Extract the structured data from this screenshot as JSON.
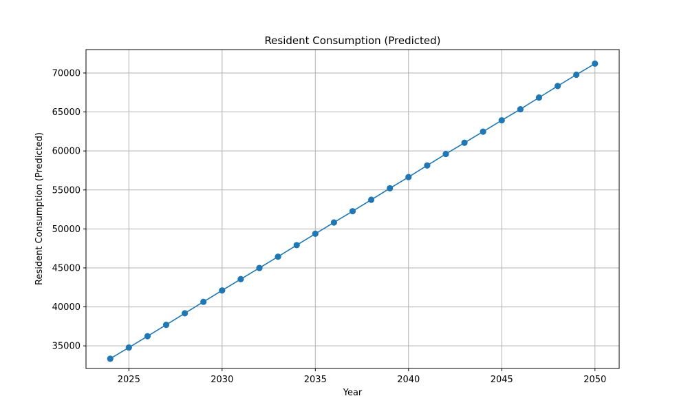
{
  "chart_data": {
    "type": "line",
    "title": "Resident Consumption (Predicted)",
    "xlabel": "Year",
    "ylabel": "Resident Consumption (Predicted)",
    "xlim": [
      2022.7,
      2051.3
    ],
    "ylim": [
      32100,
      73000
    ],
    "xticks": [
      2025,
      2030,
      2035,
      2040,
      2045,
      2050
    ],
    "yticks": [
      35000,
      40000,
      45000,
      50000,
      55000,
      60000,
      65000,
      70000
    ],
    "grid": true,
    "line_color": "#1f77b4",
    "marker": "circle",
    "series": [
      {
        "x": [
          2024,
          2025,
          2026,
          2027,
          2028,
          2029,
          2030,
          2031,
          2032,
          2033,
          2034,
          2035,
          2036,
          2037,
          2038,
          2039,
          2040,
          2041,
          2042,
          2043,
          2044,
          2045,
          2046,
          2047,
          2048,
          2049,
          2050
        ],
        "values": [
          33350,
          34790,
          36240,
          37700,
          39180,
          40650,
          42110,
          43560,
          44990,
          46440,
          47920,
          49380,
          50830,
          52270,
          53740,
          55210,
          56650,
          58140,
          59610,
          61050,
          62480,
          63930,
          65350,
          66850,
          68330,
          69780,
          71200
        ]
      }
    ]
  }
}
